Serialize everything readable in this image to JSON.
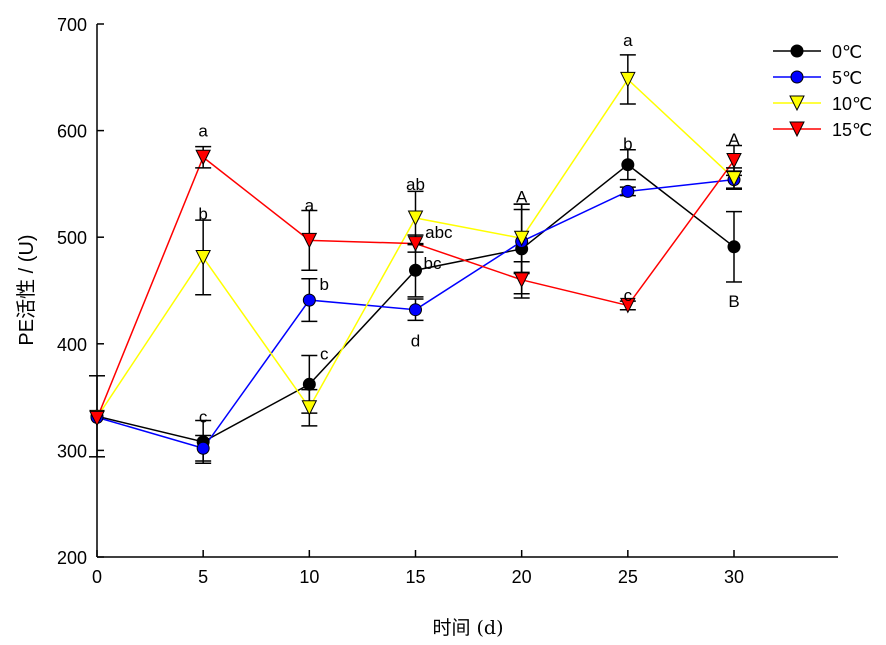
{
  "chart_data": {
    "type": "line",
    "title": "",
    "xlabel": "时间 (d)",
    "ylabel": "PE活性 / (U)",
    "xlim": [
      0,
      35
    ],
    "ylim": [
      200,
      700
    ],
    "xticks": [
      0,
      5,
      10,
      15,
      20,
      25,
      30
    ],
    "yticks": [
      200,
      300,
      400,
      500,
      600,
      700
    ],
    "grid": false,
    "legend_position": "top-right",
    "x": [
      0,
      5,
      10,
      15,
      20,
      25,
      30
    ],
    "series": [
      {
        "name": "0℃",
        "color": "#000000",
        "marker": "circle",
        "values": [
          332,
          308,
          362,
          469,
          489,
          568,
          491
        ],
        "errors": [
          38,
          20,
          27,
          25,
          42,
          14,
          33
        ]
      },
      {
        "name": "5℃",
        "color": "#0000ff",
        "marker": "circle",
        "values": [
          331,
          302,
          441,
          432,
          496,
          543,
          554
        ],
        "errors": [
          0,
          12,
          20,
          10,
          30,
          4,
          8
        ]
      },
      {
        "name": "10℃",
        "color": "#ffff00",
        "marker": "triangle-down",
        "values": [
          331,
          481,
          340,
          518,
          499,
          648,
          555
        ],
        "errors": [
          0,
          35,
          17,
          25,
          32,
          23,
          10
        ]
      },
      {
        "name": "15℃",
        "color": "#ff0000",
        "marker": "triangle-down",
        "values": [
          330,
          575,
          497,
          494,
          460,
          436,
          572
        ],
        "errors": [
          0,
          10,
          28,
          8,
          17,
          4,
          14
        ]
      }
    ],
    "annotations": [
      {
        "x": 5,
        "y": 600,
        "text": "a"
      },
      {
        "x": 5,
        "y": 522,
        "text": "b"
      },
      {
        "x": 5,
        "y": 332,
        "text": "c"
      },
      {
        "x": 10,
        "y": 530,
        "text": "a"
      },
      {
        "x": 10.7,
        "y": 456,
        "text": "b"
      },
      {
        "x": 10.7,
        "y": 391,
        "text": "c"
      },
      {
        "x": 15,
        "y": 550,
        "text": "ab"
      },
      {
        "x": 16.1,
        "y": 505,
        "text": "abc"
      },
      {
        "x": 15.8,
        "y": 476,
        "text": "bc"
      },
      {
        "x": 15,
        "y": 403,
        "text": "d"
      },
      {
        "x": 20,
        "y": 538,
        "text": "A"
      },
      {
        "x": 25,
        "y": 685,
        "text": "a"
      },
      {
        "x": 25,
        "y": 588,
        "text": "b"
      },
      {
        "x": 25,
        "y": 446,
        "text": "c"
      },
      {
        "x": 30,
        "y": 592,
        "text": "A"
      },
      {
        "x": 30,
        "y": 440,
        "text": "B"
      }
    ]
  }
}
